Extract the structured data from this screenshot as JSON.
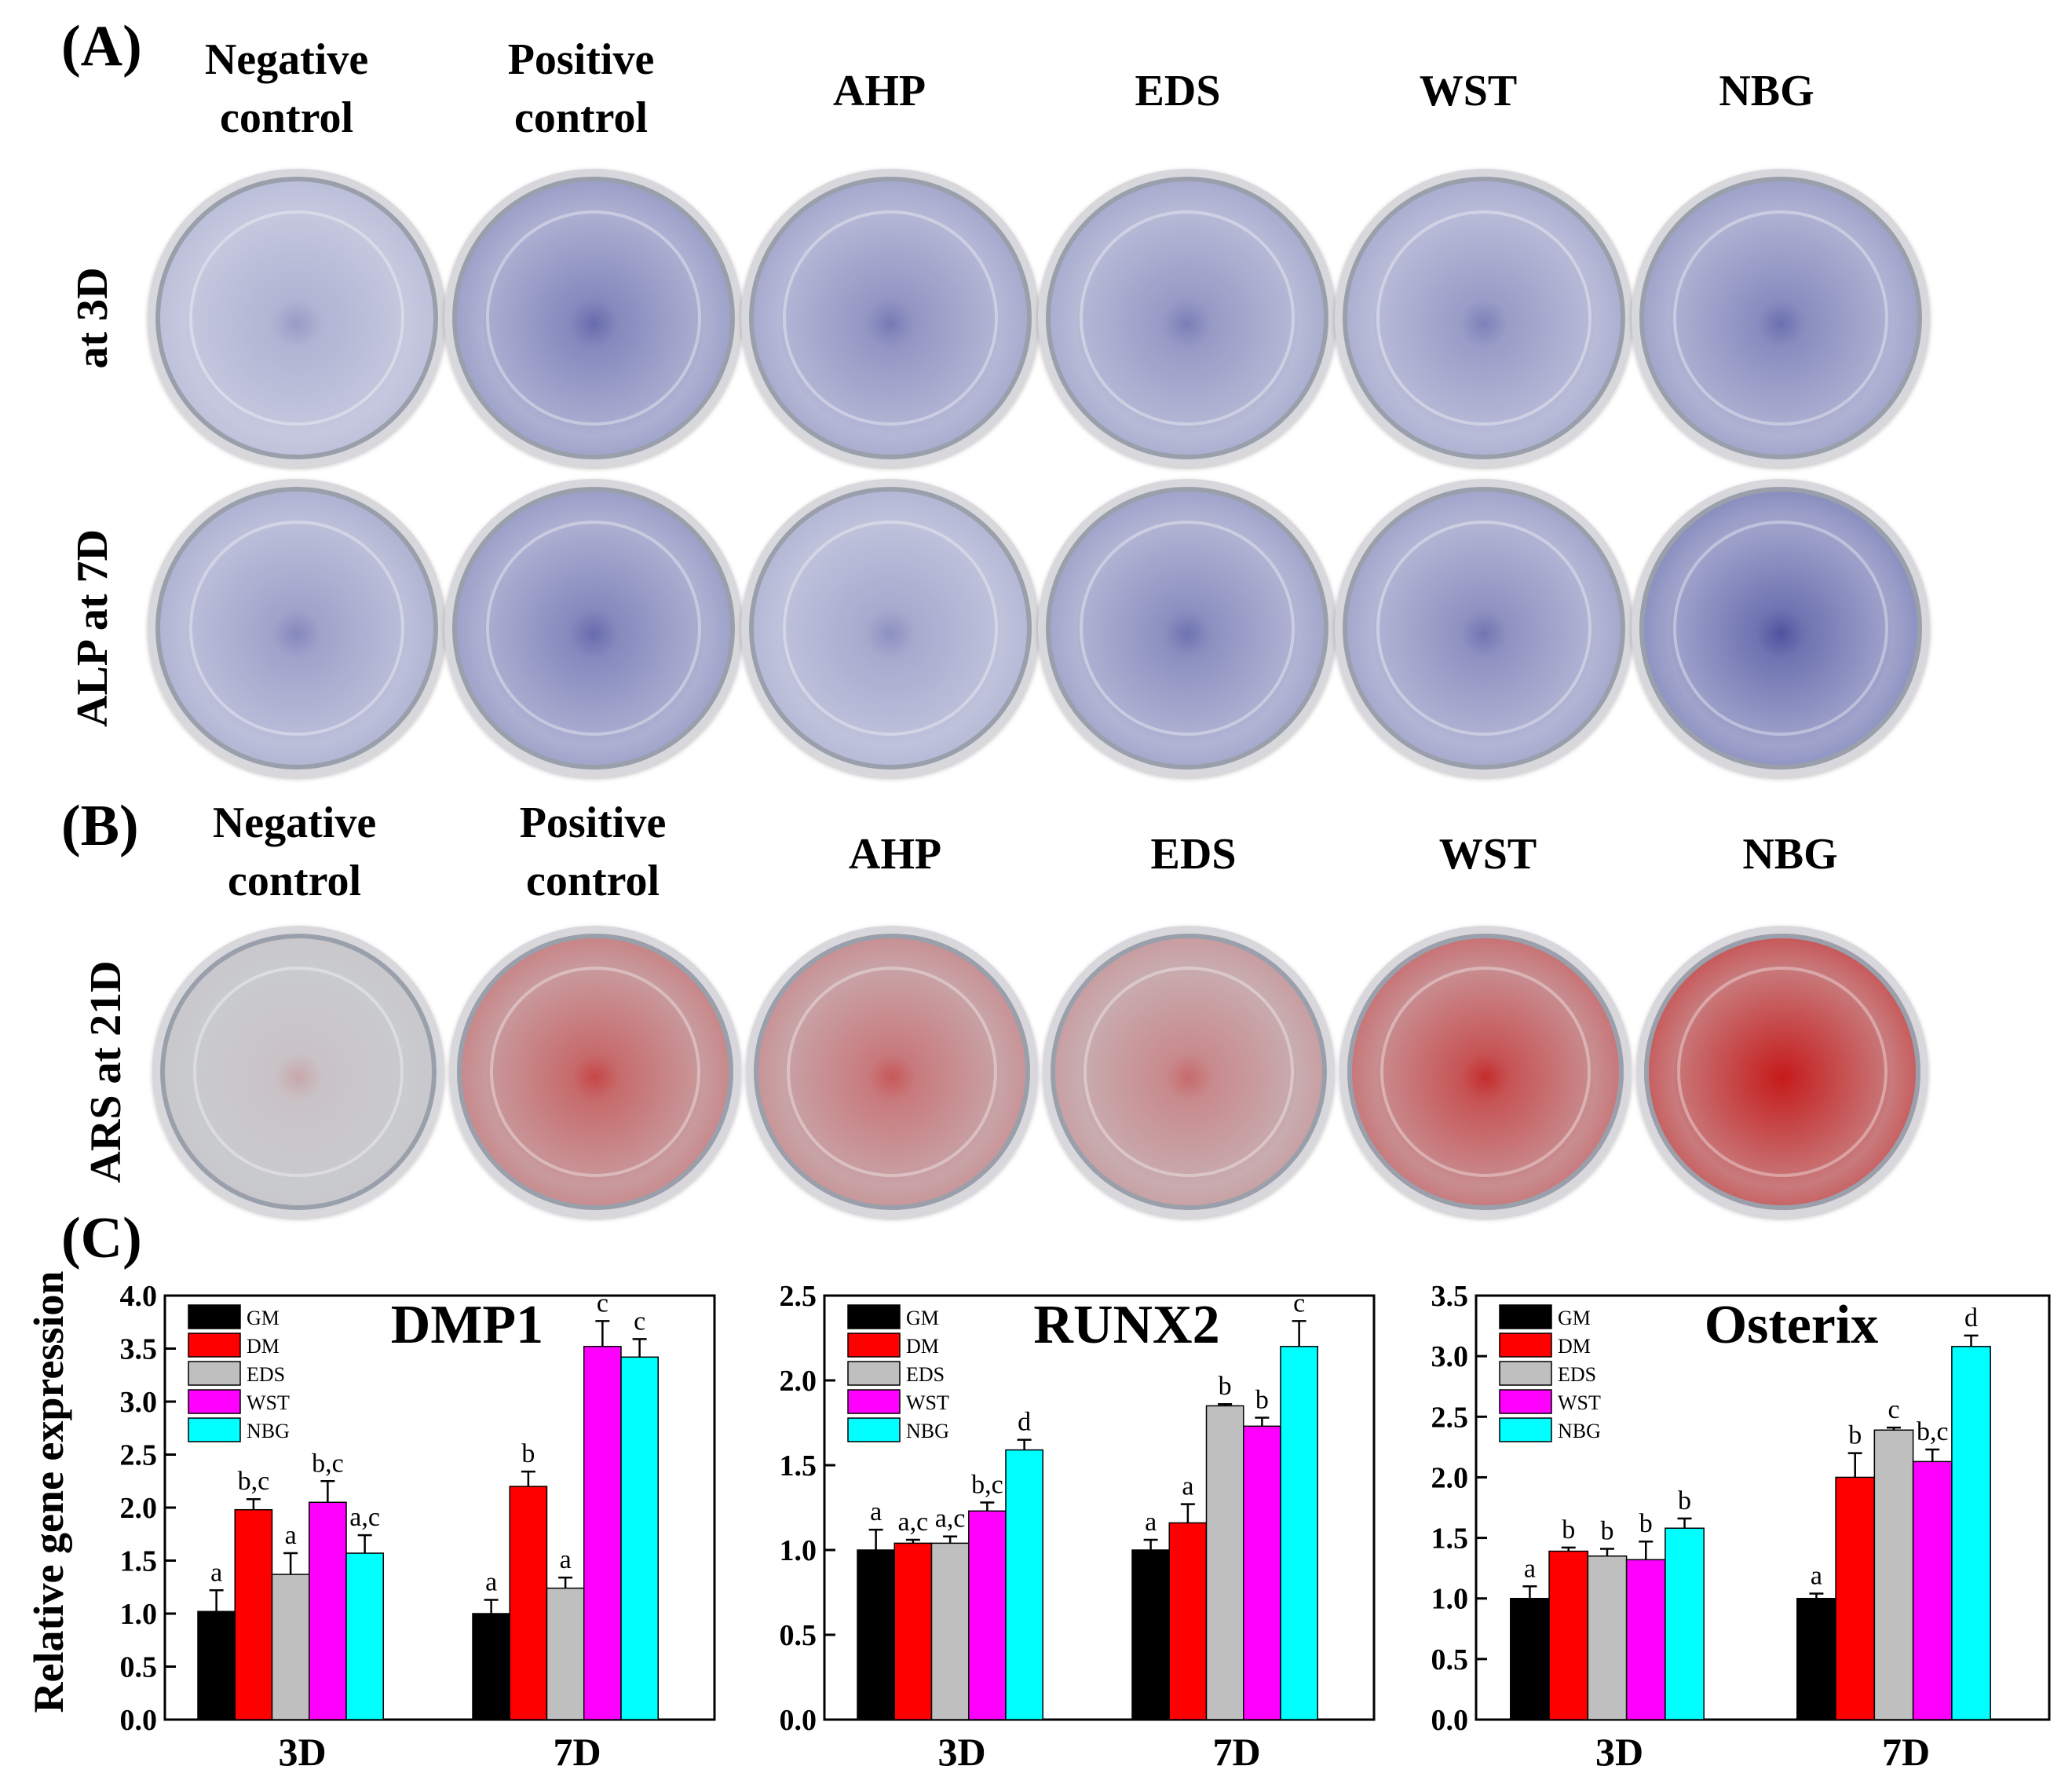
{
  "figure": {
    "panels": {
      "A": {
        "label": "(A)",
        "columns": [
          "Negative\ncontrol",
          "Positive\ncontrol",
          "AHP",
          "EDS",
          "WST",
          "NBG"
        ],
        "rows": [
          {
            "label": "at 3D",
            "stain": "ALP",
            "dish_tones": [
              0.22,
              0.55,
              0.45,
              0.42,
              0.4,
              0.52
            ]
          },
          {
            "label": "ALP at 7D",
            "stain": "ALP",
            "dish_tones": [
              0.35,
              0.55,
              0.3,
              0.5,
              0.48,
              0.72
            ]
          }
        ],
        "colors": {
          "stain": "#43479a",
          "base": "#d5d8e6"
        }
      },
      "B": {
        "label": "(B)",
        "columns": [
          "Negative\ncontrol",
          "Positive\ncontrol",
          "AHP",
          "EDS",
          "WST",
          "NBG"
        ],
        "rows": [
          {
            "label": "ARS at 21D",
            "stain": "ARS",
            "dish_tones": [
              0.0,
              0.55,
              0.45,
              0.35,
              0.7,
              0.92
            ]
          }
        ],
        "colors": {
          "stain": "#c61a1a",
          "base": "#c9cbcf"
        }
      },
      "C": {
        "label": "(C)",
        "ylabel": "Relative gene expression"
      }
    }
  },
  "chart_data": [
    {
      "type": "bar",
      "title": "DMP1",
      "categories": [
        "3D",
        "7D"
      ],
      "ylim": [
        0,
        4.0
      ],
      "yticks": [
        "0.0",
        "0.5",
        "1.0",
        "1.5",
        "2.0",
        "2.5",
        "3.0",
        "3.5",
        "4.0"
      ],
      "ylabel": "Relative gene expression",
      "legend": "top-left",
      "series": [
        {
          "name": "GM",
          "color": "#000000",
          "values": [
            1.02,
            1.0
          ],
          "errors": [
            0.2,
            0.13
          ],
          "labels": [
            "a",
            "a"
          ]
        },
        {
          "name": "DM",
          "color": "#ff0000",
          "values": [
            1.98,
            2.2
          ],
          "errors": [
            0.1,
            0.14
          ],
          "labels": [
            "b,c",
            "b"
          ]
        },
        {
          "name": "EDS",
          "color": "#bfbfbf",
          "values": [
            1.37,
            1.24
          ],
          "errors": [
            0.2,
            0.1
          ],
          "labels": [
            "a",
            "a"
          ]
        },
        {
          "name": "WST",
          "color": "#ff00ff",
          "values": [
            2.05,
            3.52
          ],
          "errors": [
            0.2,
            0.24
          ],
          "labels": [
            "b,c",
            "c"
          ]
        },
        {
          "name": "NBG",
          "color": "#00ffff",
          "values": [
            1.57,
            3.42
          ],
          "errors": [
            0.17,
            0.17
          ],
          "labels": [
            "a,c",
            "c"
          ]
        }
      ]
    },
    {
      "type": "bar",
      "title": "RUNX2",
      "categories": [
        "3D",
        "7D"
      ],
      "ylim": [
        0,
        2.5
      ],
      "yticks": [
        "0.0",
        "0.5",
        "1.0",
        "1.5",
        "2.0",
        "2.5"
      ],
      "legend": "top-left",
      "series": [
        {
          "name": "GM",
          "color": "#000000",
          "values": [
            1.0,
            1.0
          ],
          "errors": [
            0.12,
            0.06
          ],
          "labels": [
            "a",
            "a"
          ]
        },
        {
          "name": "DM",
          "color": "#ff0000",
          "values": [
            1.04,
            1.16
          ],
          "errors": [
            0.02,
            0.11
          ],
          "labels": [
            "a,c",
            "a"
          ]
        },
        {
          "name": "EDS",
          "color": "#bfbfbf",
          "values": [
            1.04,
            1.85
          ],
          "errors": [
            0.04,
            0.01
          ],
          "labels": [
            "a,c",
            "b"
          ]
        },
        {
          "name": "WST",
          "color": "#ff00ff",
          "values": [
            1.23,
            1.73
          ],
          "errors": [
            0.05,
            0.05
          ],
          "labels": [
            "b,c",
            "b"
          ]
        },
        {
          "name": "NBG",
          "color": "#00ffff",
          "values": [
            1.59,
            2.2
          ],
          "errors": [
            0.06,
            0.15
          ],
          "labels": [
            "d",
            "c"
          ]
        }
      ]
    },
    {
      "type": "bar",
      "title": "Osterix",
      "categories": [
        "3D",
        "7D"
      ],
      "ylim": [
        0,
        3.5
      ],
      "yticks": [
        "0.0",
        "0.5",
        "1.0",
        "1.5",
        "2.0",
        "2.5",
        "3.0",
        "3.5"
      ],
      "legend": "top-left",
      "series": [
        {
          "name": "GM",
          "color": "#000000",
          "values": [
            1.0,
            1.0
          ],
          "errors": [
            0.1,
            0.04
          ],
          "labels": [
            "a",
            "a"
          ]
        },
        {
          "name": "DM",
          "color": "#ff0000",
          "values": [
            1.39,
            2.0
          ],
          "errors": [
            0.03,
            0.2
          ],
          "labels": [
            "b",
            "b"
          ]
        },
        {
          "name": "EDS",
          "color": "#bfbfbf",
          "values": [
            1.35,
            2.39
          ],
          "errors": [
            0.06,
            0.02
          ],
          "labels": [
            "b",
            "c"
          ]
        },
        {
          "name": "WST",
          "color": "#ff00ff",
          "values": [
            1.32,
            2.13
          ],
          "errors": [
            0.15,
            0.1
          ],
          "labels": [
            "b",
            "b,c"
          ]
        },
        {
          "name": "NBG",
          "color": "#00ffff",
          "values": [
            1.58,
            3.08
          ],
          "errors": [
            0.08,
            0.09
          ],
          "labels": [
            "b",
            "d"
          ]
        }
      ]
    }
  ]
}
